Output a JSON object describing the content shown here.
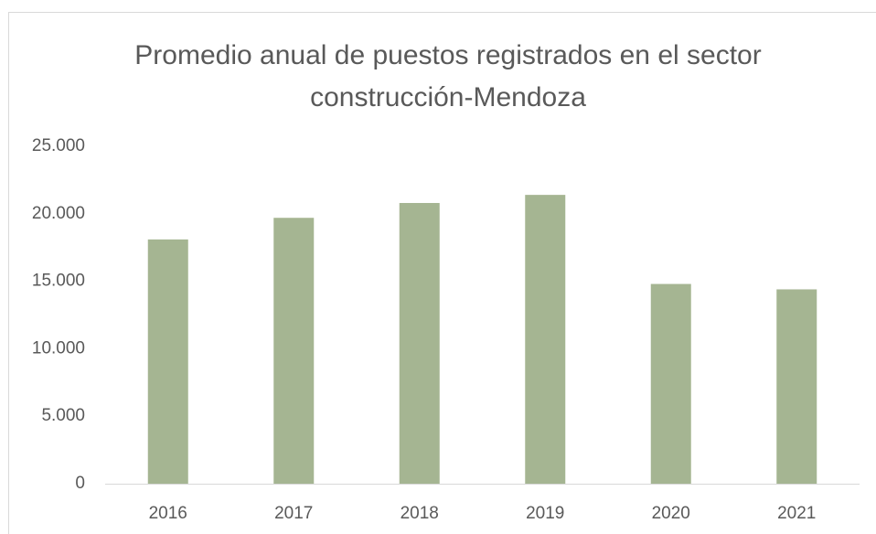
{
  "chart_data": {
    "type": "bar",
    "title": "Promedio anual de puestos registrados en el sector construcción-Mendoza",
    "categories": [
      "2016",
      "2017",
      "2018",
      "2019",
      "2020",
      "2021"
    ],
    "values": [
      18100,
      19700,
      20800,
      21400,
      14800,
      14400
    ],
    "color": "#a5b592",
    "ylim": [
      0,
      25000
    ],
    "yticks": [
      0,
      {
        "value": 5000,
        "label": "5.000"
      },
      {
        "value": 10000,
        "label": "10.000"
      },
      {
        "value": 15000,
        "label": "15.000"
      },
      {
        "value": 20000,
        "label": "20.000"
      },
      {
        "value": 25000,
        "label": "25.000"
      }
    ],
    "grid": false
  }
}
